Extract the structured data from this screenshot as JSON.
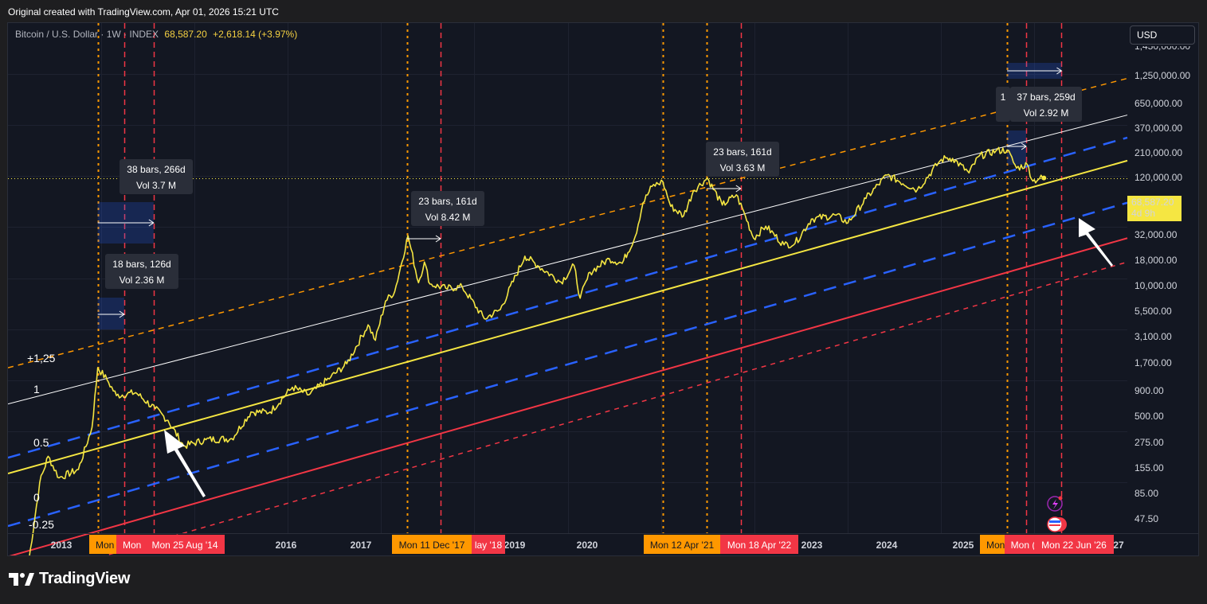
{
  "caption": "Original created with TradingView.com, Apr 01, 2026 15:21 UTC",
  "header": {
    "symbol": "Bitcoin / U.S. Dollar · 1W · INDEX",
    "price": "68,587.20",
    "change": "+2,618.14 (+3.97%)",
    "currency": "USD"
  },
  "brand": "TradingView",
  "colors": {
    "price": "#f5e642",
    "background": "#131722",
    "orange_channel": "#ff9800",
    "blue_channel": "#2962ff",
    "red_channel": "#f23645",
    "white_line": "#ffffff",
    "label_orange": "#ff9800",
    "label_red": "#f23645"
  },
  "chart_data": {
    "type": "line",
    "scale": "log",
    "series": [
      {
        "values_note": "",
        "points": [
          [
            "2013-01-01",
            13
          ],
          [
            "2013-03-01",
            90
          ],
          [
            "2013-04-10",
            160
          ],
          [
            "2013-06-01",
            100
          ],
          [
            "2013-09-01",
            120
          ],
          [
            "2013-11-05",
            300
          ],
          [
            "2013-12-02",
            1100
          ],
          [
            "2014-01-15",
            850
          ],
          [
            "2014-03-01",
            600
          ],
          [
            "2014-06-01",
            640
          ],
          [
            "2014-09-01",
            450
          ],
          [
            "2014-11-01",
            350
          ],
          [
            "2015-01-15",
            200
          ],
          [
            "2015-05-01",
            230
          ],
          [
            "2015-09-01",
            235
          ],
          [
            "2015-12-01",
            420
          ],
          [
            "2016-03-01",
            420
          ],
          [
            "2016-06-15",
            720
          ],
          [
            "2016-09-01",
            610
          ],
          [
            "2016-12-15",
            900
          ],
          [
            "2017-03-01",
            1200
          ],
          [
            "2017-06-10",
            2800
          ],
          [
            "2017-07-15",
            2000
          ],
          [
            "2017-09-01",
            4700
          ],
          [
            "2017-10-15",
            5800
          ],
          [
            "2017-12-17",
            19500
          ],
          [
            "2018-02-05",
            7000
          ],
          [
            "2018-03-05",
            11000
          ],
          [
            "2018-04-01",
            6800
          ],
          [
            "2018-06-15",
            6200
          ],
          [
            "2018-09-01",
            6400
          ],
          [
            "2018-12-15",
            3200
          ],
          [
            "2019-03-01",
            3900
          ],
          [
            "2019-06-26",
            12500
          ],
          [
            "2019-09-01",
            10000
          ],
          [
            "2019-12-15",
            7100
          ],
          [
            "2020-02-15",
            10200
          ],
          [
            "2020-03-15",
            5000
          ],
          [
            "2020-05-01",
            8800
          ],
          [
            "2020-08-01",
            11800
          ],
          [
            "2020-10-01",
            10700
          ],
          [
            "2020-12-01",
            19000
          ],
          [
            "2021-01-08",
            40000
          ],
          [
            "2021-02-20",
            57000
          ],
          [
            "2021-04-12",
            63500
          ],
          [
            "2021-05-20",
            37000
          ],
          [
            "2021-07-20",
            30000
          ],
          [
            "2021-09-05",
            52000
          ],
          [
            "2021-11-10",
            68500
          ],
          [
            "2022-01-20",
            38000
          ],
          [
            "2022-03-28",
            47500
          ],
          [
            "2022-05-10",
            30000
          ],
          [
            "2022-06-18",
            18500
          ],
          [
            "2022-08-15",
            24000
          ],
          [
            "2022-11-10",
            16000
          ],
          [
            "2023-01-01",
            16500
          ],
          [
            "2023-03-20",
            28000
          ],
          [
            "2023-07-15",
            30500
          ],
          [
            "2023-09-10",
            25800
          ],
          [
            "2023-12-05",
            44000
          ],
          [
            "2024-03-14",
            73000
          ],
          [
            "2024-08-05",
            53000
          ],
          [
            "2024-11-20",
            99000
          ],
          [
            "2024-12-18",
            106000
          ],
          [
            "2025-01-20",
            105000
          ],
          [
            "2025-04-08",
            76500
          ],
          [
            "2025-05-25",
            110000
          ],
          [
            "2025-08-14",
            124000
          ],
          [
            "2025-10-06",
            126000
          ],
          [
            "2025-11-20",
            85000
          ],
          [
            "2026-01-10",
            92000
          ],
          [
            "2026-02-06",
            64000
          ],
          [
            "2026-03-10",
            68000
          ],
          [
            "2026-03-30",
            68587.2
          ]
        ]
      }
    ],
    "x_range": [
      "2012-10-01",
      "2027-05-01"
    ],
    "x_ticks": [
      "2013",
      "2016",
      "2017",
      "2019",
      "2020",
      "2023",
      "2024",
      "2025",
      "27"
    ],
    "y_range": [
      30,
      2000000
    ],
    "y_ticks": [
      "1,250,000.00",
      "650,000.00",
      "370,000.00",
      "210,000.00",
      "120,000.00",
      "32,000.00",
      "18,000.00",
      "10,000.00",
      "5,500.00",
      "3,100.00",
      "1,700.00",
      "900.00",
      "500.00",
      "275.00",
      "155.00",
      "85.00",
      "47.50"
    ],
    "current_price_label": {
      "value": "68,587.20",
      "sub": "4d 9h"
    },
    "channel_lines": [
      {
        "name": "white",
        "p1": [
          "2012-10-01",
          500
        ],
        "p2": [
          "2027-05-01",
          270000
        ],
        "style": "solid"
      },
      {
        "name": "orange-upper",
        "p1": [
          "2012-10-01",
          1100
        ],
        "p2": [
          "2027-05-01",
          600000
        ],
        "style": "dashed"
      },
      {
        "name": "blue-upper",
        "p1": [
          "2012-10-01",
          155
        ],
        "p2": [
          "2027-05-01",
          165000
        ],
        "style": "dashed"
      },
      {
        "name": "yellow-mid",
        "p1": [
          "2012-10-01",
          110
        ],
        "p2": [
          "2027-05-01",
          100000
        ],
        "style": "solid"
      },
      {
        "name": "blue-lower",
        "p1": [
          "2012-10-01",
          35
        ],
        "p2": [
          "2027-05-01",
          40000
        ],
        "style": "dashed"
      },
      {
        "name": "red-lower",
        "p1": [
          "2012-10-01",
          18
        ],
        "p2": [
          "2027-05-01",
          18500
        ],
        "style": "solid"
      },
      {
        "name": "red-dashed-lower",
        "p1": [
          "2012-10-01",
          10
        ],
        "p2": [
          "2027-05-01",
          11000
        ],
        "style": "dashed"
      }
    ],
    "fib_labels": [
      "+1,25",
      "1",
      "0.5",
      "0",
      "-0.25"
    ],
    "vertical_markers": [
      {
        "date": "2013-12-02",
        "color": "orange",
        "label": "Mon"
      },
      {
        "date": "2014-04-07",
        "color": "red",
        "label": "Mon"
      },
      {
        "date": "2014-08-25",
        "color": "red",
        "label": "Mon 25 Aug '14"
      },
      {
        "date": "2017-12-11",
        "color": "orange",
        "label": "Mon 11 Dec '17"
      },
      {
        "date": "2018-05-21",
        "color": "red",
        "label": "lay '18"
      },
      {
        "date": "2021-04-12",
        "color": "orange",
        "label": "Mon 12 Apr '21"
      },
      {
        "date": "2021-11-08",
        "color": "orange",
        "label": ""
      },
      {
        "date": "2022-04-18",
        "color": "red",
        "label": "Mon 18 Apr '22"
      },
      {
        "date": "2025-10-06",
        "color": "orange",
        "label": "Mon"
      },
      {
        "date": "2026-01-05",
        "color": "red",
        "label": "Mon ("
      },
      {
        "date": "2026-06-22",
        "color": "red",
        "label": "Mon 22 Jun '26"
      }
    ],
    "measure_boxes": [
      {
        "bars": "38 bars, 266d",
        "vol": "Vol 3.7 M"
      },
      {
        "bars": "18 bars, 126d",
        "vol": "Vol 2.36 M"
      },
      {
        "bars": "23 bars, 161d",
        "vol": "Vol 8.42 M"
      },
      {
        "bars": "23 bars, 161d",
        "vol": "Vol 3.63 M"
      },
      {
        "bars": "37 bars, 259d",
        "vol": "Vol 2.92 M"
      },
      {
        "bars": "1",
        "vol": ""
      }
    ]
  }
}
